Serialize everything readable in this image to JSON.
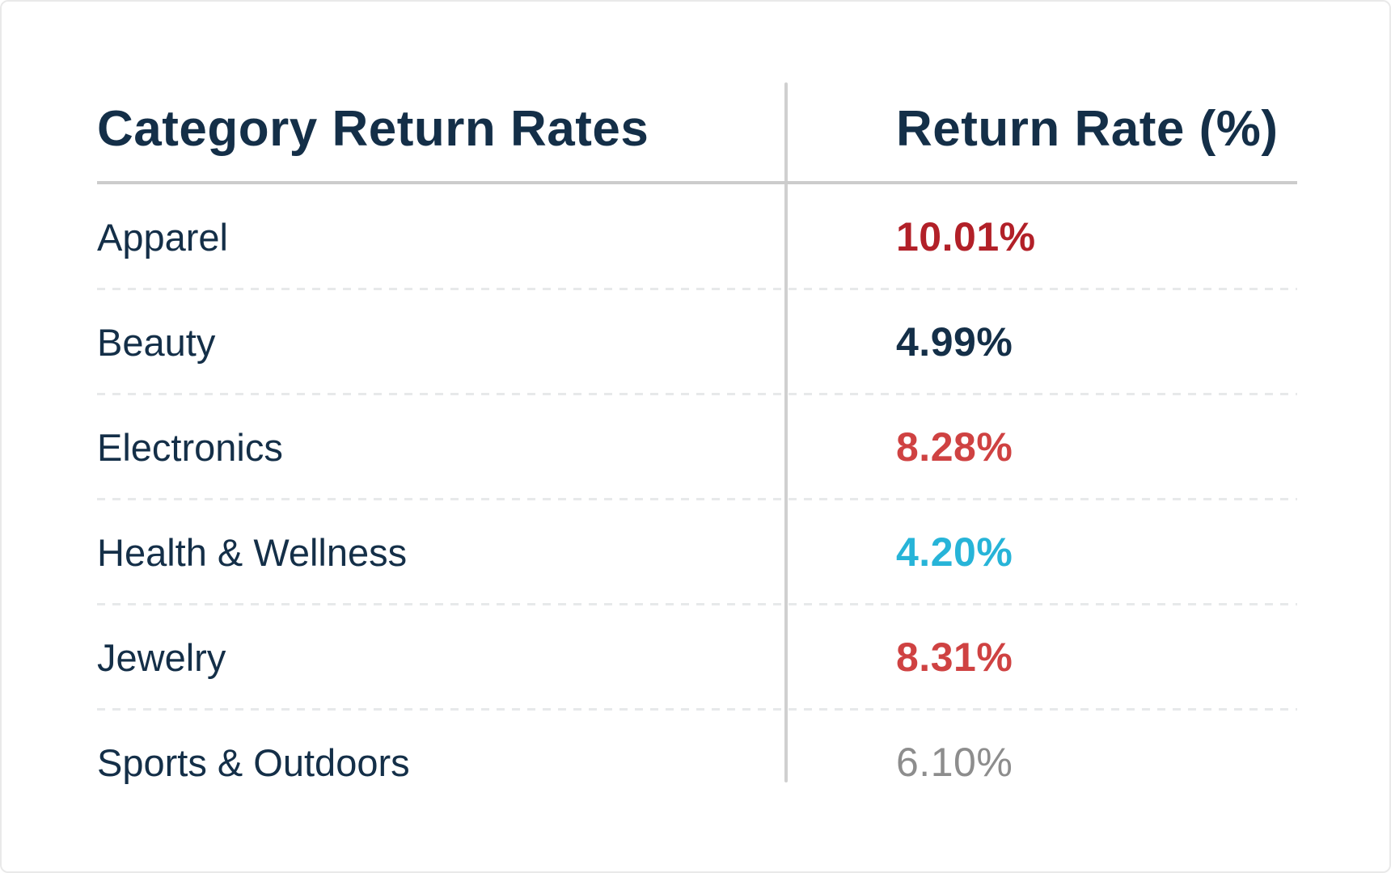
{
  "card": {
    "title": "Category Return Rates",
    "rate_column_header": "Return Rate (%)"
  },
  "chart_data": {
    "type": "table",
    "title": "Category Return Rates",
    "columns": [
      "Category Return Rates",
      "Return Rate (%)"
    ],
    "categories": [
      "Apparel",
      "Beauty",
      "Electronics",
      "Health & Wellness",
      "Jewelry",
      "Sports & Outdoors"
    ],
    "values": [
      10.01,
      4.99,
      8.28,
      4.2,
      8.31,
      6.1
    ],
    "value_labels": [
      "10.01%",
      "4.99%",
      "8.28%",
      "4.20%",
      "8.31%",
      "6.10%"
    ],
    "value_colors": [
      "#b22028",
      "#142f48",
      "#cf4242",
      "#27b4d8",
      "#cf4242",
      "#8d8d8d"
    ],
    "legend_position": "none",
    "grid": "dashed-row-separators"
  },
  "table": {
    "rows": [
      {
        "category": "Apparel",
        "rate": "10.01%",
        "color": "#b22028",
        "weight": "700"
      },
      {
        "category": "Beauty",
        "rate": "4.99%",
        "color": "#142f48",
        "weight": "700"
      },
      {
        "category": "Electronics",
        "rate": "8.28%",
        "color": "#cf4242",
        "weight": "700"
      },
      {
        "category": "Health & Wellness",
        "rate": "4.20%",
        "color": "#27b4d8",
        "weight": "700"
      },
      {
        "category": "Jewelry",
        "rate": "8.31%",
        "color": "#cf4242",
        "weight": "700"
      },
      {
        "category": "Sports & Outdoors",
        "rate": "6.10%",
        "color": "#8d8d8d",
        "weight": "400"
      }
    ]
  },
  "colors": {
    "heading_text": "#142f48",
    "category_text": "#142f48",
    "header_rule": "#cccccc",
    "column_divider": "#d0d0d0",
    "row_separator": "#e7e9ea",
    "card_border": "#e9e9e9",
    "background": "#ffffff"
  }
}
